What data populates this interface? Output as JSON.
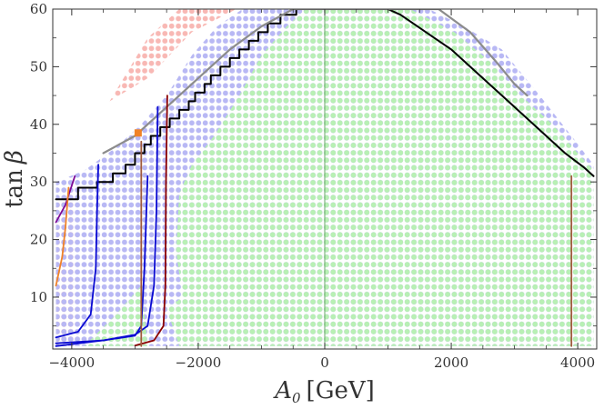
{
  "chart_data": {
    "type": "scatter",
    "xlabel": "A_0  [GeV]",
    "ylabel": "tan β",
    "xlim": [
      -4300,
      4300
    ],
    "ylim": [
      1,
      60
    ],
    "x_ticks": [
      -4000,
      -2000,
      0,
      2000,
      4000
    ],
    "y_ticks": [
      10,
      20,
      30,
      40,
      50,
      60
    ],
    "x_tick_labels": [
      "−4000",
      "−2000",
      "0",
      "2000",
      "4000"
    ],
    "y_tick_labels": [
      "10",
      "20",
      "30",
      "40",
      "50",
      "60"
    ],
    "grid": false,
    "colors": {
      "green_region": "#b8f0b4",
      "blue_region": "#b8b8f4",
      "red_region": "#f8b8b4",
      "black": "#000000",
      "gray": "#8c8c8c",
      "blue": "#0a0ad2",
      "darkred": "#8b0000",
      "purple": "#7d0a96",
      "orange": "#f08228",
      "brown": "#a05a3c",
      "zero_line": "#6aa86a"
    },
    "regions": [
      {
        "color": "red_region",
        "polygon": [
          [
            -4250,
            1.5
          ],
          [
            -4250,
            26
          ],
          [
            -3950,
            29
          ],
          [
            -3950,
            1.5
          ]
        ]
      },
      {
        "color": "red_region",
        "polygon": [
          [
            -3400,
            44
          ],
          [
            -2800,
            55
          ],
          [
            -2300,
            60
          ],
          [
            -1400,
            60
          ],
          [
            -2100,
            56
          ],
          [
            -2800,
            48
          ]
        ]
      },
      {
        "color": "blue_region",
        "polygon": [
          [
            -4250,
            1.5
          ],
          [
            -4250,
            30
          ],
          [
            -3800,
            32
          ],
          [
            -3300,
            36
          ],
          [
            -2900,
            40
          ],
          [
            -2500,
            45
          ],
          [
            -2100,
            52
          ],
          [
            -1700,
            57
          ],
          [
            -1300,
            60
          ],
          [
            1650,
            60
          ],
          [
            2200,
            57
          ],
          [
            2800,
            53
          ],
          [
            3400,
            45
          ],
          [
            3900,
            38
          ],
          [
            4250,
            33
          ],
          [
            4250,
            1.5
          ]
        ]
      },
      {
        "color": "green_region",
        "polygon": [
          [
            -2300,
            1.5
          ],
          [
            -2500,
            8
          ],
          [
            -2250,
            10
          ],
          [
            -2350,
            18
          ],
          [
            -2300,
            28
          ],
          [
            -2100,
            33
          ],
          [
            -1750,
            38
          ],
          [
            -1350,
            45
          ],
          [
            -1000,
            52
          ],
          [
            -600,
            57
          ],
          [
            -300,
            60
          ],
          [
            1350,
            60
          ],
          [
            2050,
            56
          ],
          [
            2600,
            51
          ],
          [
            3100,
            45
          ],
          [
            3600,
            40
          ],
          [
            4000,
            35
          ],
          [
            4250,
            32
          ],
          [
            4250,
            1.5
          ]
        ]
      },
      {
        "color": "green_region",
        "polygon": [
          [
            -3800,
            1.5
          ],
          [
            -3300,
            7
          ],
          [
            -2900,
            12
          ],
          [
            -2800,
            1.5
          ]
        ]
      }
    ],
    "series": [
      {
        "color": "black",
        "shape": "staircase",
        "points": [
          [
            -4250,
            27
          ],
          [
            -3900,
            27
          ],
          [
            -3900,
            29
          ],
          [
            -3600,
            29
          ],
          [
            -3600,
            30
          ],
          [
            -3350,
            30
          ],
          [
            -3350,
            31.5
          ],
          [
            -3150,
            31.5
          ],
          [
            -3150,
            33
          ],
          [
            -3000,
            33
          ],
          [
            -3000,
            35
          ],
          [
            -2850,
            35
          ],
          [
            -2850,
            36.5
          ],
          [
            -2750,
            36.5
          ],
          [
            -2750,
            38
          ],
          [
            -2600,
            38
          ],
          [
            -2600,
            39.5
          ],
          [
            -2450,
            39.5
          ],
          [
            -2450,
            41
          ],
          [
            -2300,
            41
          ],
          [
            -2300,
            42.5
          ],
          [
            -2150,
            42.5
          ],
          [
            -2150,
            44
          ],
          [
            -2050,
            44
          ],
          [
            -2050,
            45.5
          ],
          [
            -1900,
            45.5
          ],
          [
            -1900,
            47
          ],
          [
            -1800,
            47
          ],
          [
            -1800,
            48.5
          ],
          [
            -1650,
            48.5
          ],
          [
            -1650,
            50
          ],
          [
            -1500,
            50
          ],
          [
            -1500,
            51.5
          ],
          [
            -1350,
            51.5
          ],
          [
            -1350,
            53
          ],
          [
            -1200,
            53
          ],
          [
            -1200,
            54.5
          ],
          [
            -1050,
            54.5
          ],
          [
            -1050,
            56
          ],
          [
            -900,
            56
          ],
          [
            -900,
            57.5
          ],
          [
            -700,
            57.5
          ],
          [
            -700,
            59
          ],
          [
            -450,
            59
          ],
          [
            -450,
            60
          ],
          [
            1000,
            60
          ],
          [
            1200,
            59
          ],
          [
            1400,
            57.5
          ],
          [
            1600,
            56
          ],
          [
            1800,
            54.5
          ],
          [
            2000,
            53
          ],
          [
            2300,
            50
          ],
          [
            2600,
            47
          ],
          [
            2900,
            44
          ],
          [
            3200,
            41
          ],
          [
            3500,
            38
          ],
          [
            3800,
            35
          ],
          [
            4100,
            32.5
          ],
          [
            4250,
            31
          ]
        ]
      },
      {
        "color": "gray",
        "shape": "curve",
        "points": [
          [
            -3500,
            35
          ],
          [
            -3000,
            38
          ],
          [
            -2500,
            43
          ],
          [
            -2000,
            48
          ],
          [
            -1500,
            53
          ],
          [
            -1000,
            57
          ],
          [
            -500,
            60
          ],
          [
            1800,
            60
          ],
          [
            2300,
            56
          ],
          [
            2700,
            51
          ],
          [
            3000,
            47
          ],
          [
            3200,
            45
          ]
        ]
      },
      {
        "color": "blue",
        "shape": "curve",
        "points": [
          [
            -4250,
            3
          ],
          [
            -3900,
            4
          ],
          [
            -3700,
            7
          ],
          [
            -3620,
            15
          ],
          [
            -3600,
            25
          ],
          [
            -3580,
            33
          ]
        ]
      },
      {
        "color": "blue",
        "shape": "curve",
        "points": [
          [
            -4250,
            2
          ],
          [
            -3500,
            2.5
          ],
          [
            -3000,
            3.5
          ],
          [
            -2800,
            5
          ],
          [
            -2700,
            12
          ],
          [
            -2660,
            25
          ],
          [
            -2640,
            43
          ]
        ]
      },
      {
        "color": "blue",
        "shape": "curve",
        "points": [
          [
            -4250,
            1.5
          ],
          [
            -3500,
            2.5
          ],
          [
            -3000,
            3.3
          ],
          [
            -2900,
            5
          ],
          [
            -2850,
            15
          ],
          [
            -2800,
            31
          ]
        ]
      },
      {
        "color": "darkred",
        "shape": "curve",
        "points": [
          [
            -3000,
            1.6
          ],
          [
            -2700,
            2.5
          ],
          [
            -2550,
            5
          ],
          [
            -2520,
            12
          ],
          [
            -2510,
            30
          ],
          [
            -2490,
            45
          ]
        ]
      },
      {
        "color": "purple",
        "shape": "curve",
        "points": [
          [
            -4250,
            23
          ],
          [
            -4100,
            26
          ],
          [
            -3950,
            31
          ]
        ]
      },
      {
        "color": "orange",
        "shape": "curve",
        "points": [
          [
            -4250,
            12
          ],
          [
            -4150,
            17
          ],
          [
            -4100,
            22
          ],
          [
            -4050,
            29
          ]
        ]
      },
      {
        "color": "brown",
        "shape": "curve",
        "points": [
          [
            -2900,
            1.5
          ],
          [
            -2900,
            37
          ]
        ]
      },
      {
        "color": "brown",
        "shape": "curve",
        "points": [
          [
            3900,
            1.5
          ],
          [
            3900,
            31
          ]
        ]
      }
    ],
    "markers": [
      {
        "color": "orange",
        "shape": "square",
        "x": -2950,
        "y": 38.5
      }
    ]
  }
}
